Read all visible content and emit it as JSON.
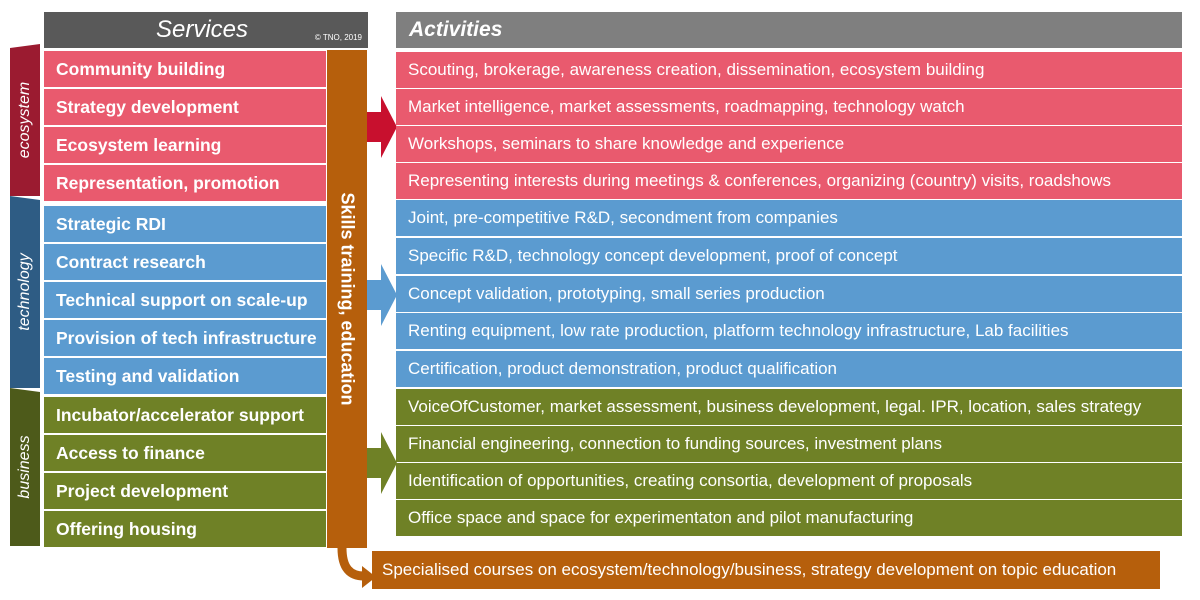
{
  "header": {
    "services": "Services",
    "copyright": "© TNO, 2019",
    "activities": "Activities"
  },
  "categories": {
    "ecosystem": "ecosystem",
    "technology": "technology",
    "business": "business"
  },
  "skills_label": "Skills training, education",
  "services": {
    "ecosystem": [
      "Community building",
      "Strategy development",
      "Ecosystem learning",
      "Representation, promotion"
    ],
    "technology": [
      "Strategic RDI",
      "Contract research",
      "Technical support on scale-up",
      "Provision of tech infrastructure",
      "Testing and validation"
    ],
    "business": [
      "Incubator/accelerator  support",
      "Access to finance",
      "Project development",
      "Offering housing"
    ]
  },
  "activities": {
    "ecosystem": [
      "Scouting, brokerage, awareness creation, dissemination, ecosystem building",
      "Market intelligence, market assessments, roadmapping, technology watch",
      "Workshops, seminars to share knowledge and experience",
      "Representing interests during meetings & conferences, organizing (country) visits, roadshows"
    ],
    "technology": [
      "Joint, pre-competitive R&D, secondment from companies",
      "Specific R&D, technology concept development, proof of concept",
      "Concept validation, prototyping, small series production",
      "Renting equipment, low rate production, platform technology infrastructure, Lab facilities",
      "Certification, product demonstration, product qualification"
    ],
    "business": [
      "VoiceOfCustomer, market assessment, business development, legal. IPR, location, sales strategy",
      "Financial engineering, connection to funding sources, investment plans",
      "Identification of opportunities, creating consortia, development of proposals",
      "Office space and space for experimentaton and pilot manufacturing"
    ]
  },
  "courses": "Specialised courses on ecosystem/technology/business, strategy development on topic education",
  "colors": {
    "ecosystem": "#e95a6e",
    "technology": "#5b9bd0",
    "business": "#6f8126",
    "skills": "#b65f0c",
    "ecosystem_bar": "#9b1b30",
    "technology_bar": "#2e5c84",
    "business_bar": "#4d5a1a"
  }
}
